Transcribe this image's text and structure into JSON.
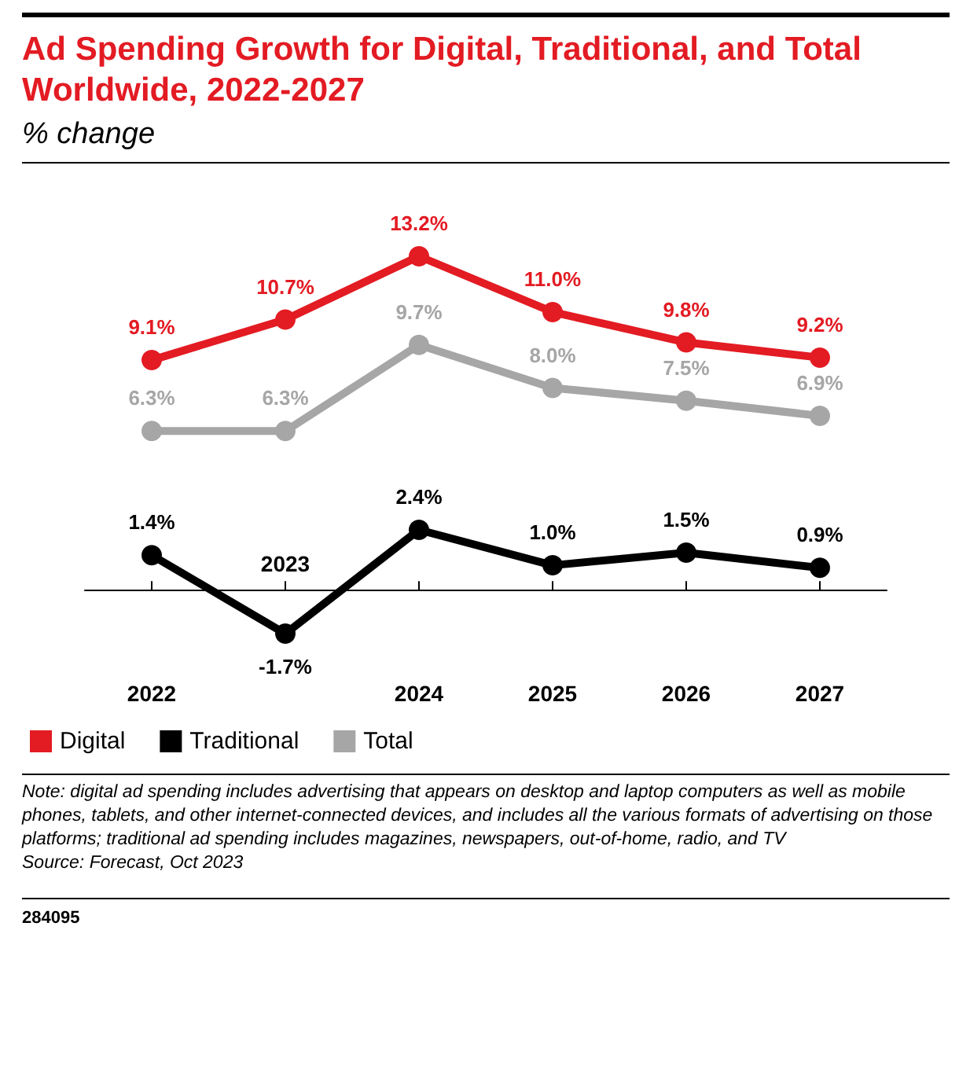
{
  "chart_data": {
    "type": "line",
    "title": "Ad Spending Growth for Digital, Traditional, and Total Worldwide, 2022-2027",
    "subtitle": "% change",
    "categories": [
      "2022",
      "2023",
      "2024",
      "2025",
      "2026",
      "2027"
    ],
    "series": [
      {
        "name": "Digital",
        "color": "#e31b23",
        "values": [
          9.1,
          10.7,
          13.2,
          11.0,
          9.8,
          9.2
        ],
        "value_labels": [
          "9.1%",
          "10.7%",
          "13.2%",
          "11.0%",
          "9.8%",
          "9.2%"
        ]
      },
      {
        "name": "Traditional",
        "color": "#000000",
        "values": [
          1.4,
          -1.7,
          2.4,
          1.0,
          1.5,
          0.9
        ],
        "value_labels": [
          "1.4%",
          "-1.7%",
          "2.4%",
          "1.0%",
          "1.5%",
          "0.9%"
        ]
      },
      {
        "name": "Total",
        "color": "#a6a6a6",
        "values": [
          6.3,
          6.3,
          9.7,
          8.0,
          7.5,
          6.9
        ],
        "value_labels": [
          "6.3%",
          "6.3%",
          "9.7%",
          "8.0%",
          "7.5%",
          "6.9%"
        ]
      }
    ],
    "grid": false,
    "legend": "bottom",
    "marker": "circle",
    "line_style": "solid",
    "annotations": [
      "Note: digital ad spending includes advertising that appears on desktop and laptop computers as well as mobile phones, tablets, and other internet-connected devices, and includes all the various formats of advertising on those platforms; traditional ad spending includes magazines, newspapers, out-of-home, radio, and TV",
      "Source: Forecast, Oct 2023",
      "284095"
    ]
  }
}
